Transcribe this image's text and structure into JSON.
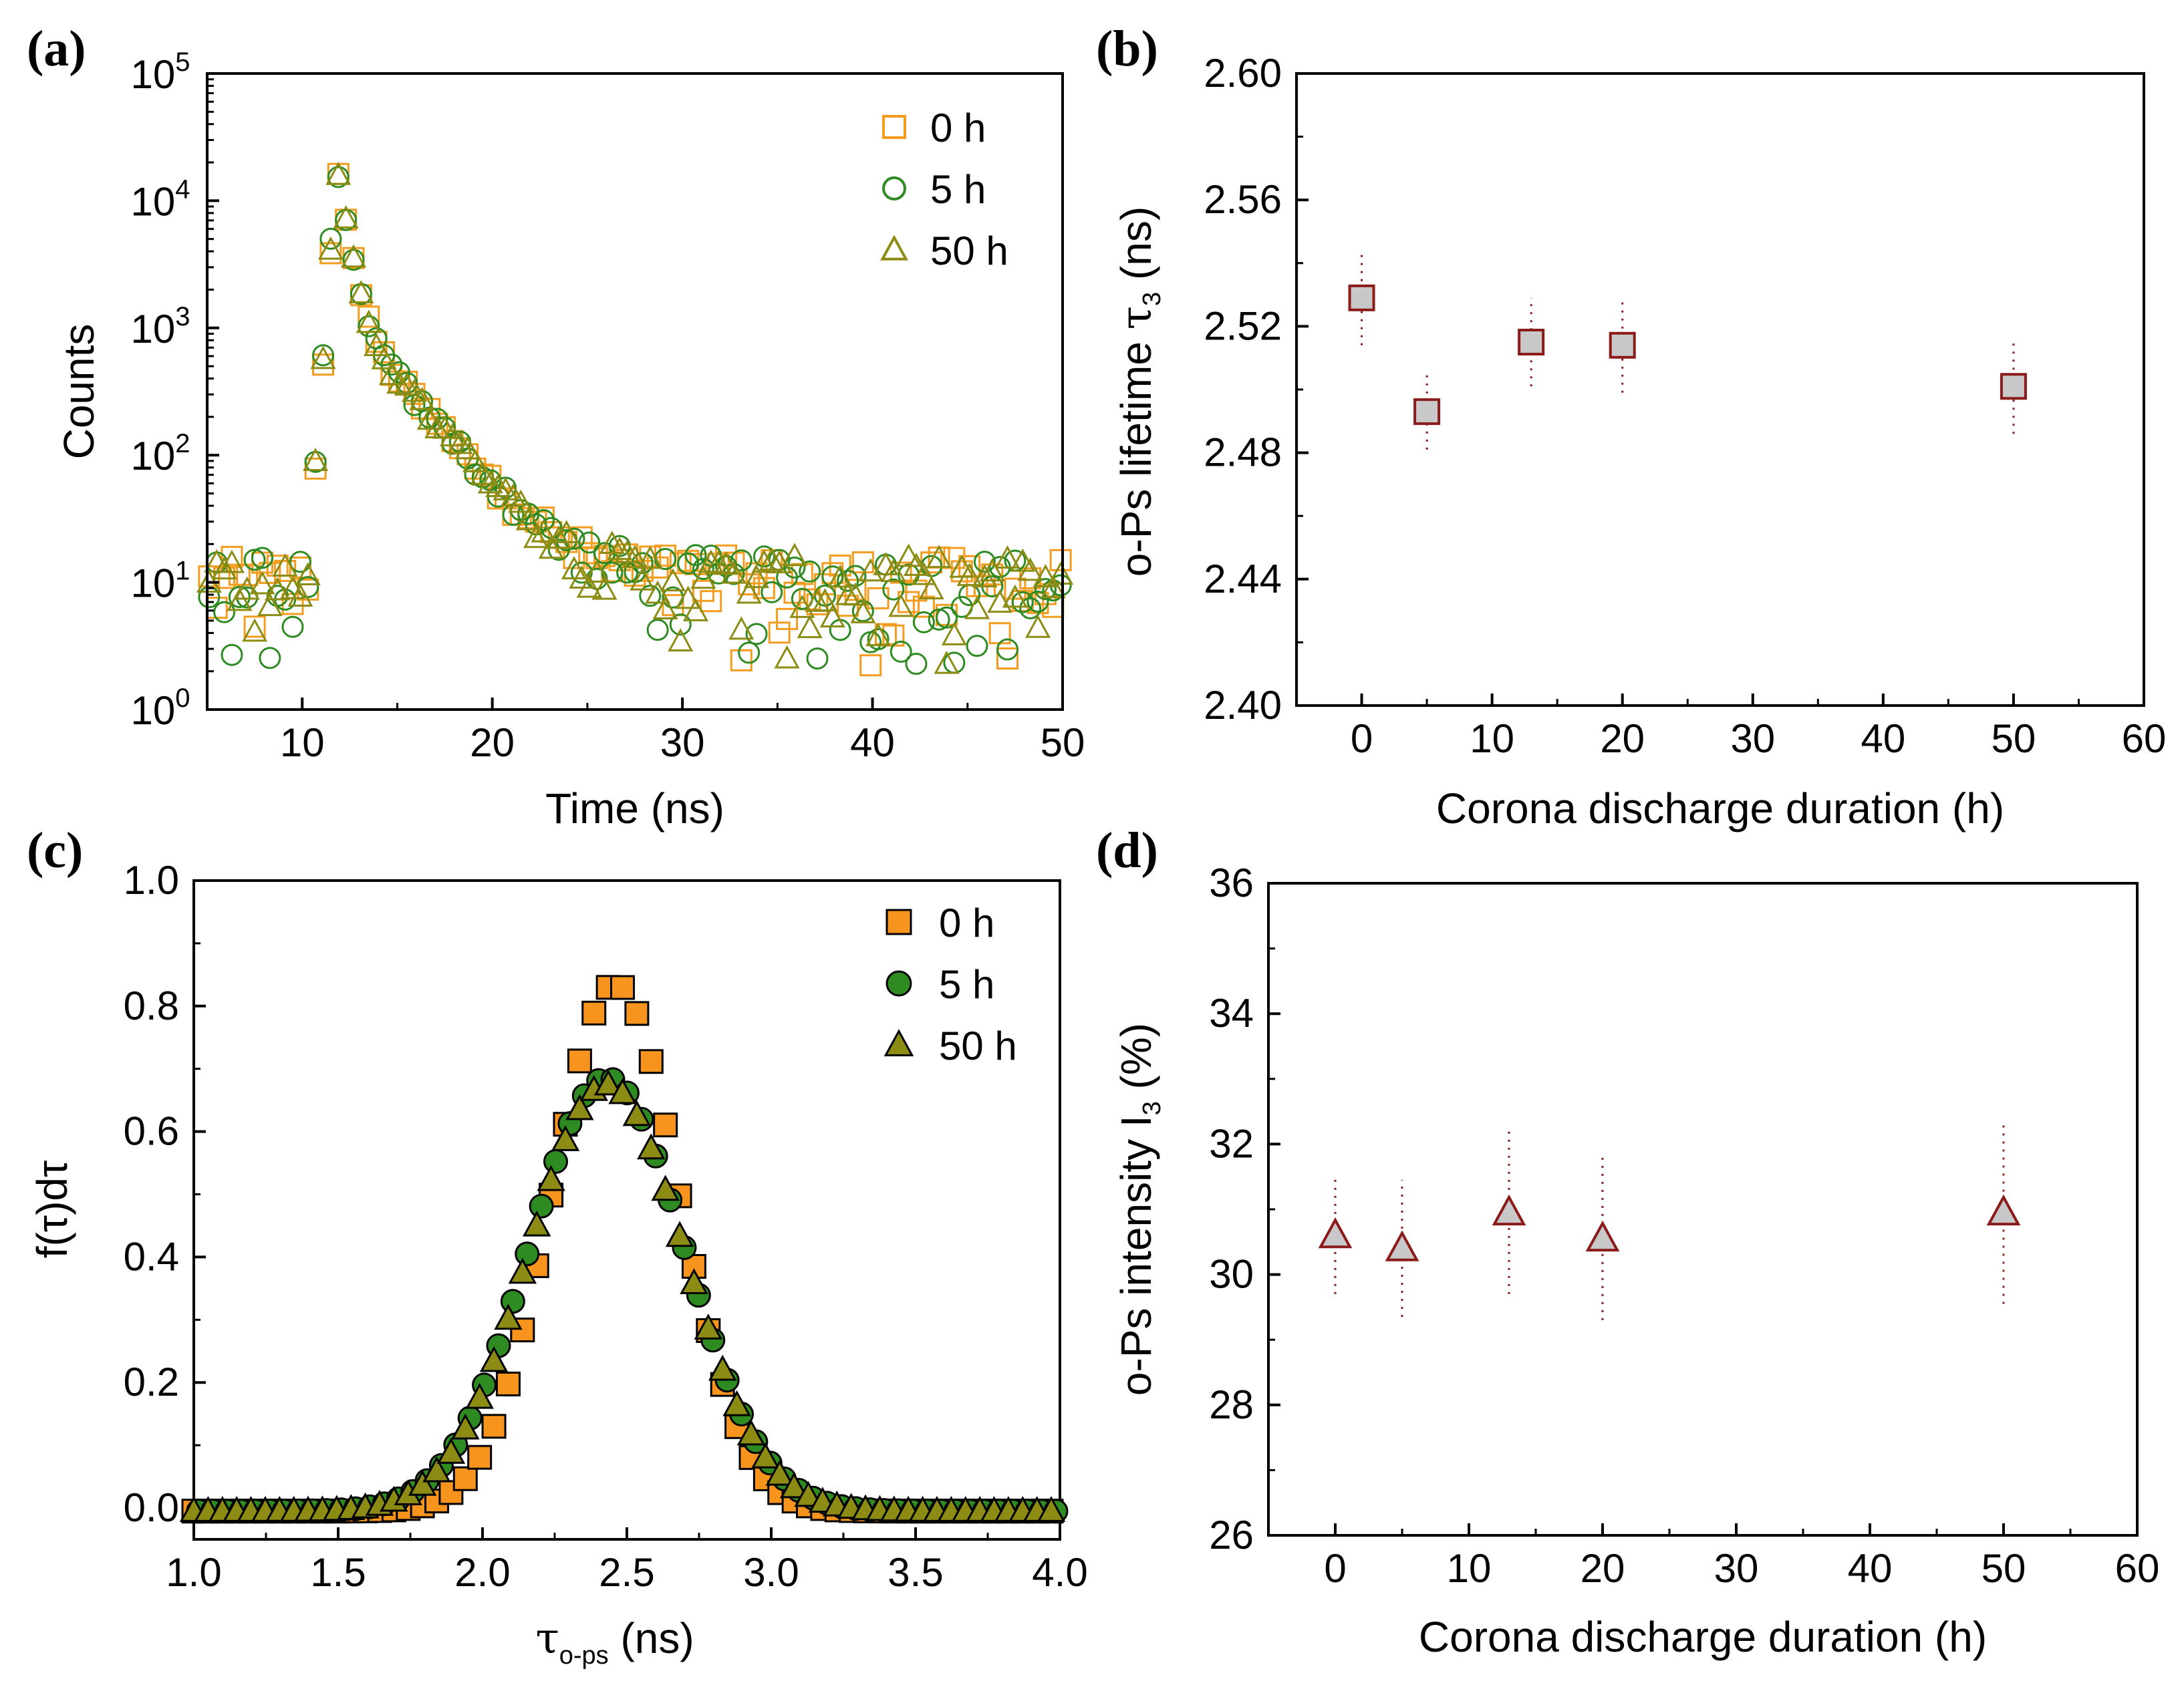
{
  "chart_data": [
    {
      "panel": "(a)",
      "type": "scatter",
      "xlabel": "Time (ns)",
      "ylabel": "Counts",
      "yscale": "log",
      "xlim": [
        5,
        50
      ],
      "ylim": [
        1,
        100000
      ],
      "xticks": [
        "10",
        "20",
        "30",
        "40",
        "50"
      ],
      "yticks": [
        {
          "base": "10",
          "exp": "0"
        },
        {
          "base": "10",
          "exp": "1"
        },
        {
          "base": "10",
          "exp": "2"
        },
        {
          "base": "10",
          "exp": "3"
        },
        {
          "base": "10",
          "exp": "4"
        },
        {
          "base": "10",
          "exp": "5"
        }
      ],
      "legend_position": "top-right",
      "series": [
        {
          "name": "0 h",
          "marker": "open-square",
          "color": "#f39c1f",
          "peak_time": 11.8,
          "peak_counts": 20000,
          "decay_tau_ns": 2.5,
          "background": 6
        },
        {
          "name": "5 h",
          "marker": "open-circle",
          "color": "#2e8b22",
          "peak_time": 11.8,
          "peak_counts": 19000,
          "decay_tau_ns": 2.5,
          "background": 6
        },
        {
          "name": "50 h",
          "marker": "open-triangle",
          "color": "#8c8c14",
          "peak_time": 11.8,
          "peak_counts": 19500,
          "decay_tau_ns": 2.5,
          "background": 6
        }
      ]
    },
    {
      "panel": "(b)",
      "type": "scatter",
      "xlabel": "Corona discharge duration (h)",
      "ylabel_prefix": "o-Ps lifetime ",
      "ylabel_symbol": "τ",
      "ylabel_sub": "3",
      "ylabel_suffix": " (ns)",
      "xlim": [
        -5,
        60
      ],
      "ylim": [
        2.4,
        2.6
      ],
      "xticks": [
        "0",
        "10",
        "20",
        "30",
        "40",
        "50",
        "60"
      ],
      "yticks": [
        "2.40",
        "2.44",
        "2.48",
        "2.52",
        "2.56",
        "2.60"
      ],
      "marker": "square",
      "marker_fill": "#c8c8c8",
      "marker_edge": "#8b1a1a",
      "points": [
        {
          "x": 0,
          "y": 2.529,
          "err": 0.015
        },
        {
          "x": 5,
          "y": 2.493,
          "err": 0.012
        },
        {
          "x": 13,
          "y": 2.515,
          "err": 0.014
        },
        {
          "x": 20,
          "y": 2.514,
          "err": 0.015
        },
        {
          "x": 50,
          "y": 2.501,
          "err": 0.015
        }
      ]
    },
    {
      "panel": "(c)",
      "type": "scatter",
      "xlabel_symbol": "τ",
      "xlabel_sub": "o-ps",
      "xlabel_suffix": " (ns)",
      "ylabel": "f(τ)dτ",
      "xlim": [
        1.0,
        4.0
      ],
      "ylim": [
        -0.05,
        1.0
      ],
      "xticks": [
        "1.0",
        "1.5",
        "2.0",
        "2.5",
        "3.0",
        "3.5",
        "4.0"
      ],
      "yticks": [
        "0.0",
        "0.2",
        "0.4",
        "0.6",
        "0.8",
        "1.0"
      ],
      "legend_position": "top-right",
      "series": [
        {
          "name": "0 h",
          "marker": "filled-square",
          "color": "#f7941d",
          "center": 2.46,
          "amplitude": 0.84,
          "sigma": 0.22,
          "baseline": -0.005
        },
        {
          "name": "5 h",
          "marker": "filled-circle",
          "color": "#2e8b22",
          "center": 2.43,
          "amplitude": 0.69,
          "sigma": 0.27,
          "baseline": -0.005
        },
        {
          "name": "50 h",
          "marker": "filled-triangle",
          "color": "#8c8c14",
          "center": 2.43,
          "amplitude": 0.68,
          "sigma": 0.27,
          "baseline": -0.005
        }
      ]
    },
    {
      "panel": "(d)",
      "type": "scatter",
      "xlabel": "Corona discharge duration (h)",
      "ylabel_prefix": "o-Ps intensity I",
      "ylabel_sub": "3",
      "ylabel_suffix": " (%)",
      "xlim": [
        -5,
        60
      ],
      "ylim": [
        26,
        36
      ],
      "xticks": [
        "0",
        "10",
        "20",
        "30",
        "40",
        "50",
        "60"
      ],
      "yticks": [
        "26",
        "28",
        "30",
        "32",
        "34",
        "36"
      ],
      "marker": "triangle",
      "marker_fill": "#c8c8c8",
      "marker_edge": "#8b1a1a",
      "points": [
        {
          "x": 0,
          "y": 30.6,
          "err": 0.9
        },
        {
          "x": 5,
          "y": 30.4,
          "err": 1.05
        },
        {
          "x": 13,
          "y": 30.95,
          "err": 1.25
        },
        {
          "x": 20,
          "y": 30.55,
          "err": 1.25
        },
        {
          "x": 50,
          "y": 30.95,
          "err": 1.4
        }
      ]
    }
  ]
}
